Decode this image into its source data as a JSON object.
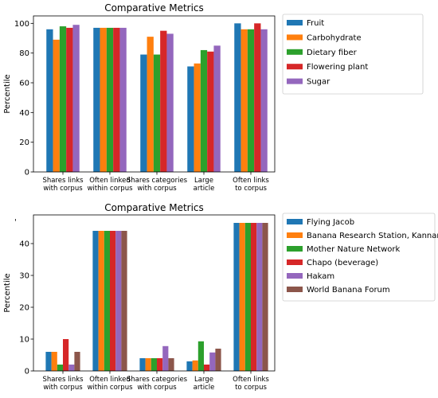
{
  "colors": {
    "series": [
      "#1f77b4",
      "#ff7f0e",
      "#2ca02c",
      "#d62728",
      "#9467bd",
      "#8c564b"
    ],
    "axis": "#000000",
    "background": "#ffffff"
  },
  "stray_mark": "'",
  "chart_data": [
    {
      "type": "bar",
      "title": "Comparative Metrics",
      "xlabel": "",
      "ylabel": "Percentile",
      "ylim": [
        0,
        105
      ],
      "yticks": [
        0,
        20,
        40,
        60,
        80,
        100
      ],
      "grid": false,
      "legend_position": "outside-right-top",
      "categories": [
        [
          "Shares links",
          "with corpus"
        ],
        [
          "Often linked",
          "within corpus"
        ],
        [
          "Shares categories",
          "with corpus"
        ],
        [
          "Large",
          "article"
        ],
        [
          "Often links",
          "to corpus"
        ]
      ],
      "series": [
        {
          "name": "Fruit",
          "values": [
            96,
            97,
            79,
            71,
            100
          ]
        },
        {
          "name": "Carbohydrate",
          "values": [
            89,
            97,
            91,
            73,
            96
          ]
        },
        {
          "name": "Dietary fiber",
          "values": [
            98,
            97,
            79,
            82,
            96
          ]
        },
        {
          "name": "Flowering plant",
          "values": [
            97,
            97,
            95,
            81,
            100
          ]
        },
        {
          "name": "Sugar",
          "values": [
            99,
            97,
            93,
            85,
            96
          ]
        }
      ]
    },
    {
      "type": "bar",
      "title": "Comparative Metrics",
      "xlabel": "",
      "ylabel": "Percentile",
      "ylim": [
        0,
        49
      ],
      "yticks": [
        0,
        10,
        20,
        30,
        40
      ],
      "grid": false,
      "legend_position": "outside-right-top",
      "categories": [
        [
          "Shares links",
          "with corpus"
        ],
        [
          "Often linked",
          "within corpus"
        ],
        [
          "Shares categories",
          "with corpus"
        ],
        [
          "Large",
          "article"
        ],
        [
          "Often links",
          "to corpus"
        ]
      ],
      "series": [
        {
          "name": "Flying Jacob",
          "values": [
            6,
            44,
            4,
            3,
            46.5
          ]
        },
        {
          "name": "Banana Research Station, Kannara",
          "values": [
            6,
            44,
            4,
            3.3,
            46.5
          ]
        },
        {
          "name": "Mother Nature Network",
          "values": [
            2,
            44,
            4,
            9.3,
            46.5
          ]
        },
        {
          "name": "Chapo (beverage)",
          "values": [
            10,
            44,
            4,
            2,
            46.5
          ]
        },
        {
          "name": "Hakam",
          "values": [
            2,
            44,
            7.8,
            5.8,
            46.5
          ]
        },
        {
          "name": "World Banana Forum",
          "values": [
            6,
            44,
            4,
            7,
            46.5
          ]
        }
      ]
    }
  ]
}
